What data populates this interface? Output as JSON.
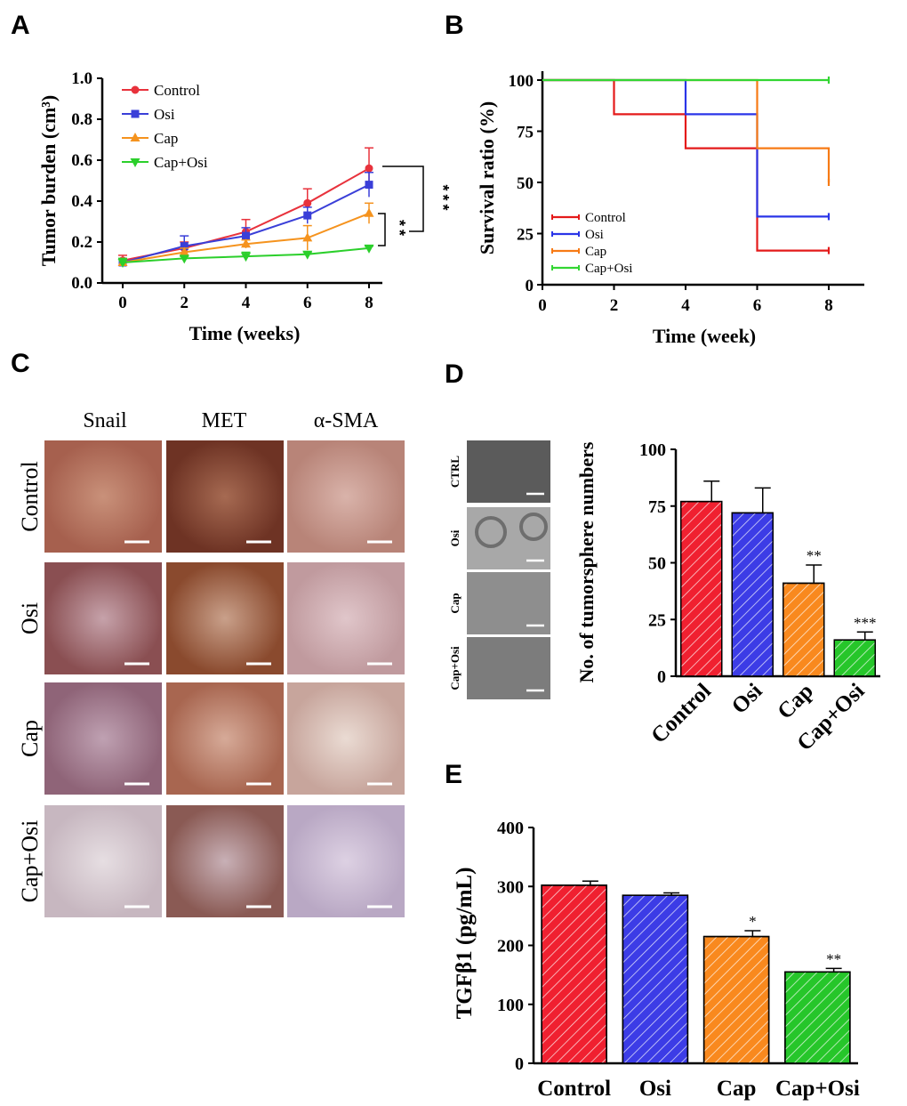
{
  "panels": {
    "A": "A",
    "B": "B",
    "C": "C",
    "D": "D",
    "E": "E"
  },
  "chart_data": [
    {
      "id": "A",
      "type": "line",
      "xlabel": "Time (weeks)",
      "ylabel": "Tumor burden (cm³)",
      "x": [
        0,
        2,
        4,
        6,
        8
      ],
      "xticks": [
        "0",
        "2",
        "4",
        "6",
        "8"
      ],
      "yticks": [
        "0.0",
        "0.2",
        "0.4",
        "0.6",
        "0.8",
        "1.0"
      ],
      "xlim": [
        0,
        8
      ],
      "ylim": [
        0,
        1.0
      ],
      "series": [
        {
          "name": "Control",
          "color": "#e8323c",
          "marker": "circle",
          "values": [
            0.11,
            0.17,
            0.25,
            0.39,
            0.56
          ],
          "errors": [
            0.025,
            0.03,
            0.06,
            0.07,
            0.1
          ]
        },
        {
          "name": "Osi",
          "color": "#3a3fd8",
          "marker": "square",
          "values": [
            0.1,
            0.18,
            0.23,
            0.33,
            0.48
          ],
          "errors": [
            0.02,
            0.05,
            0.04,
            0.04,
            0.06
          ]
        },
        {
          "name": "Cap",
          "color": "#f5931e",
          "marker": "triangle",
          "values": [
            0.1,
            0.15,
            0.19,
            0.22,
            0.34
          ],
          "errors": [
            0.02,
            0.02,
            0.02,
            0.06,
            0.05
          ]
        },
        {
          "name": "Cap+Osi",
          "color": "#2bcf2b",
          "marker": "triangle-down",
          "values": [
            0.1,
            0.12,
            0.13,
            0.14,
            0.17
          ],
          "errors": [
            0.02,
            0.01,
            0.02,
            0.01,
            0.01
          ]
        }
      ],
      "significance": [
        "***",
        "**"
      ]
    },
    {
      "id": "B",
      "type": "line",
      "xlabel": "Time (week)",
      "ylabel": "Survival ratio (%)",
      "xticks": [
        "0",
        "2",
        "4",
        "6",
        "8"
      ],
      "yticks": [
        "0",
        "25",
        "50",
        "75",
        "100"
      ],
      "xlim": [
        0,
        8
      ],
      "ylim": [
        0,
        100
      ],
      "series": [
        {
          "name": "Control",
          "color": "#e41a1a",
          "steps": [
            [
              0,
              100
            ],
            [
              2,
              100
            ],
            [
              2,
              83.3
            ],
            [
              4,
              83.3
            ],
            [
              4,
              66.7
            ],
            [
              6,
              66.7
            ],
            [
              6,
              16.7
            ],
            [
              8,
              16.7
            ]
          ]
        },
        {
          "name": "Osi",
          "color": "#2a35e8",
          "steps": [
            [
              0,
              100
            ],
            [
              4,
              100
            ],
            [
              4,
              83.3
            ],
            [
              6,
              83.3
            ],
            [
              6,
              33.3
            ],
            [
              8,
              33.3
            ]
          ]
        },
        {
          "name": "Cap",
          "color": "#f77a15",
          "steps": [
            [
              0,
              100
            ],
            [
              6,
              100
            ],
            [
              6,
              66.7
            ],
            [
              8,
              66.7
            ],
            [
              8,
              50
            ]
          ]
        },
        {
          "name": "Cap+Osi",
          "color": "#33d633",
          "steps": [
            [
              0,
              100
            ],
            [
              8,
              100
            ]
          ]
        }
      ]
    },
    {
      "id": "D",
      "type": "bar",
      "ylabel": "No. of tumorsphere numbers",
      "categories": [
        "Control",
        "Osi",
        "Cap",
        "Cap+Osi"
      ],
      "values": [
        77,
        72,
        41,
        16
      ],
      "errors": [
        9,
        11,
        8,
        3.5
      ],
      "annotations": [
        "",
        "",
        "**",
        "***"
      ],
      "colors": [
        "#f02030",
        "#3c3ce6",
        "#f9891e",
        "#26c62a"
      ],
      "yticks": [
        "0",
        "25",
        "50",
        "75",
        "100"
      ],
      "ylim": [
        0,
        100
      ]
    },
    {
      "id": "E",
      "type": "bar",
      "ylabel": "TGFβ1 (pg/mL)",
      "categories": [
        "Control",
        "Osi",
        "Cap",
        "Cap+Osi"
      ],
      "values": [
        302,
        285,
        215,
        155
      ],
      "errors": [
        7,
        4,
        10,
        6
      ],
      "annotations": [
        "",
        "",
        "*",
        "**"
      ],
      "colors": [
        "#f02030",
        "#3c3ce6",
        "#f9891e",
        "#26c62a"
      ],
      "yticks": [
        "0",
        "100",
        "200",
        "300",
        "400"
      ],
      "ylim": [
        0,
        400
      ]
    }
  ],
  "ihc": {
    "columns": [
      "Snail",
      "MET",
      "α-SMA"
    ],
    "rows": [
      "Control",
      "Osi",
      "Cap",
      "Cap+Osi"
    ]
  },
  "sphere": {
    "rows": [
      "CTRL",
      "Osi",
      "Cap",
      "Cap+Osi"
    ]
  }
}
